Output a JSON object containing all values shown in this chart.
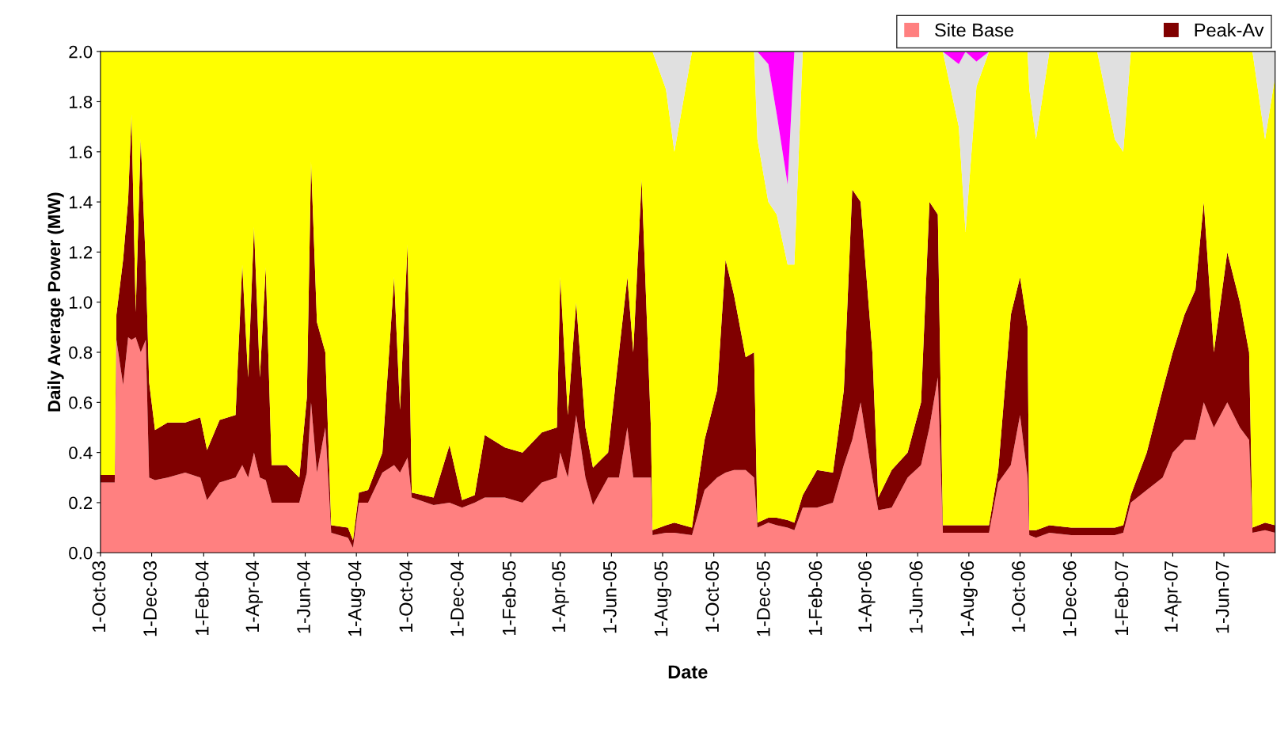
{
  "chart_data": {
    "type": "area",
    "stacked": true,
    "xlabel": "Date",
    "ylabel": "Daily Average Power (MW)",
    "legend": "top right",
    "grid": false,
    "x": [
      "2003-10-01",
      "2003-10-18",
      "2003-10-20",
      "2003-10-28",
      "2003-11-03",
      "2003-11-07",
      "2003-11-12",
      "2003-11-18",
      "2003-11-24",
      "2003-11-28",
      "2003-12-05",
      "2003-12-20",
      "2004-01-10",
      "2004-01-28",
      "2004-02-05",
      "2004-02-20",
      "2004-03-10",
      "2004-03-18",
      "2004-03-25",
      "2004-04-01",
      "2004-04-08",
      "2004-04-15",
      "2004-04-22",
      "2004-05-10",
      "2004-05-25",
      "2004-06-03",
      "2004-06-08",
      "2004-06-15",
      "2004-06-25",
      "2004-07-02",
      "2004-07-22",
      "2004-07-28",
      "2004-08-04",
      "2004-08-15",
      "2004-09-01",
      "2004-09-15",
      "2004-09-22",
      "2004-10-01",
      "2004-10-06",
      "2004-11-01",
      "2004-11-20",
      "2004-12-05",
      "2004-12-20",
      "2005-01-01",
      "2005-01-25",
      "2005-02-15",
      "2005-03-10",
      "2005-03-28",
      "2005-04-01",
      "2005-04-10",
      "2005-04-20",
      "2005-05-01",
      "2005-05-10",
      "2005-05-28",
      "2005-06-10",
      "2005-06-20",
      "2005-06-27",
      "2005-07-07",
      "2005-07-18",
      "2005-07-20",
      "2005-08-05",
      "2005-08-15",
      "2005-09-05",
      "2005-09-20",
      "2005-10-05",
      "2005-10-15",
      "2005-10-25",
      "2005-11-08",
      "2005-11-18",
      "2005-11-22",
      "2005-12-05",
      "2005-12-15",
      "2005-12-28",
      "2006-01-05",
      "2006-01-15",
      "2006-02-01",
      "2006-02-20",
      "2006-03-05",
      "2006-03-15",
      "2006-03-25",
      "2006-04-08",
      "2006-04-15",
      "2006-05-01",
      "2006-05-20",
      "2006-06-05",
      "2006-06-15",
      "2006-06-25",
      "2006-07-01",
      "2006-07-20",
      "2006-07-28",
      "2006-08-10",
      "2006-08-25",
      "2006-09-05",
      "2006-09-20",
      "2006-10-01",
      "2006-10-10",
      "2006-10-12",
      "2006-10-20",
      "2006-11-05",
      "2006-12-01",
      "2007-01-01",
      "2007-01-22",
      "2007-02-01",
      "2007-02-10",
      "2007-03-01",
      "2007-03-20",
      "2007-04-01",
      "2007-04-15",
      "2007-04-28",
      "2007-05-08",
      "2007-05-20",
      "2007-06-05",
      "2007-06-20",
      "2007-07-01",
      "2007-07-05",
      "2007-07-20",
      "2007-08-01"
    ],
    "series": [
      {
        "name": "Site Base",
        "color": "#ff8080",
        "values": [
          0.28,
          0.28,
          0.85,
          0.67,
          0.86,
          0.85,
          0.86,
          0.8,
          0.85,
          0.3,
          0.29,
          0.3,
          0.32,
          0.3,
          0.21,
          0.28,
          0.3,
          0.35,
          0.3,
          0.4,
          0.3,
          0.29,
          0.2,
          0.2,
          0.2,
          0.32,
          0.6,
          0.32,
          0.5,
          0.08,
          0.06,
          0.02,
          0.2,
          0.2,
          0.32,
          0.35,
          0.32,
          0.38,
          0.22,
          0.19,
          0.2,
          0.18,
          0.2,
          0.22,
          0.22,
          0.2,
          0.28,
          0.3,
          0.4,
          0.3,
          0.55,
          0.3,
          0.19,
          0.3,
          0.3,
          0.5,
          0.3,
          0.3,
          0.3,
          0.07,
          0.08,
          0.08,
          0.07,
          0.25,
          0.3,
          0.32,
          0.33,
          0.33,
          0.3,
          0.1,
          0.12,
          0.11,
          0.1,
          0.09,
          0.18,
          0.18,
          0.2,
          0.35,
          0.45,
          0.6,
          0.3,
          0.17,
          0.18,
          0.3,
          0.35,
          0.5,
          0.7,
          0.08,
          0.08,
          0.08,
          0.08,
          0.08,
          0.28,
          0.35,
          0.55,
          0.3,
          0.07,
          0.06,
          0.08,
          0.07,
          0.07,
          0.07,
          0.08,
          0.2,
          0.25,
          0.3,
          0.4,
          0.45,
          0.45,
          0.6,
          0.5,
          0.6,
          0.5,
          0.45,
          0.08,
          0.09,
          0.08
        ]
      },
      {
        "name": "Peak-Av",
        "color": "#800000",
        "values": [
          0.03,
          0.03,
          0.1,
          0.5,
          0.55,
          0.9,
          0.1,
          0.85,
          0.3,
          0.38,
          0.2,
          0.22,
          0.2,
          0.24,
          0.2,
          0.25,
          0.25,
          0.8,
          0.4,
          0.9,
          0.4,
          0.85,
          0.15,
          0.15,
          0.1,
          0.3,
          0.96,
          0.6,
          0.3,
          0.03,
          0.04,
          0.03,
          0.04,
          0.05,
          0.08,
          0.75,
          0.25,
          0.85,
          0.02,
          0.03,
          0.23,
          0.03,
          0.03,
          0.25,
          0.2,
          0.2,
          0.2,
          0.2,
          0.7,
          0.25,
          0.45,
          0.2,
          0.15,
          0.1,
          0.5,
          0.6,
          0.5,
          1.19,
          0.2,
          0.02,
          0.03,
          0.04,
          0.03,
          0.2,
          0.35,
          0.85,
          0.7,
          0.45,
          0.5,
          0.02,
          0.02,
          0.03,
          0.03,
          0.03,
          0.05,
          0.15,
          0.12,
          0.3,
          1.0,
          0.8,
          0.5,
          0.05,
          0.15,
          0.1,
          0.25,
          0.9,
          0.65,
          0.03,
          0.03,
          0.03,
          0.03,
          0.03,
          0.05,
          0.6,
          0.55,
          0.6,
          0.02,
          0.03,
          0.03,
          0.03,
          0.03,
          0.03,
          0.03,
          0.03,
          0.15,
          0.35,
          0.4,
          0.5,
          0.6,
          0.8,
          0.3,
          0.6,
          0.5,
          0.35,
          0.02,
          0.03,
          0.03
        ]
      },
      {
        "color": "#ffff00",
        "values": [
          1.69,
          1.69,
          1.05,
          0.83,
          0.59,
          0.25,
          1.04,
          0.35,
          0.85,
          1.32,
          1.51,
          1.48,
          1.48,
          1.46,
          1.59,
          1.47,
          1.45,
          0.85,
          1.3,
          0.7,
          1.3,
          0.86,
          1.65,
          1.65,
          1.7,
          1.38,
          0.44,
          1.08,
          1.2,
          1.89,
          1.9,
          1.95,
          1.76,
          1.75,
          1.6,
          0.9,
          1.43,
          0.77,
          1.76,
          1.78,
          1.57,
          1.79,
          1.77,
          1.53,
          1.58,
          1.6,
          1.52,
          1.5,
          0.9,
          1.45,
          1.0,
          1.5,
          1.66,
          1.6,
          1.2,
          0.9,
          1.2,
          0.51,
          1.5,
          1.91,
          1.74,
          1.48,
          1.9,
          1.55,
          1.35,
          0.83,
          0.97,
          1.22,
          1.2,
          1.53,
          1.26,
          1.21,
          1.02,
          1.03,
          1.77,
          1.67,
          1.68,
          1.35,
          0.55,
          0.6,
          1.2,
          1.78,
          1.67,
          1.6,
          1.4,
          0.6,
          0.65,
          1.89,
          1.59,
          1.17,
          1.75,
          1.89,
          1.67,
          1.05,
          0.9,
          1.1,
          1.76,
          1.56,
          1.89,
          1.9,
          1.9,
          1.55,
          1.49,
          1.77,
          1.6,
          1.35,
          1.2,
          1.05,
          0.95,
          0.6,
          1.2,
          0.8,
          1.0,
          1.2,
          1.9,
          1.53,
          1.79
        ]
      },
      {
        "color": "#e0e0e0",
        "values": [
          0,
          0,
          0,
          0,
          0,
          0,
          0,
          0,
          0,
          0,
          0,
          0,
          0,
          0,
          0,
          0,
          0,
          0,
          0,
          0,
          0,
          0,
          0,
          0,
          0,
          0,
          0,
          0,
          0,
          0,
          0,
          0,
          0,
          0,
          0,
          0,
          0,
          0,
          0,
          0,
          0,
          0,
          0,
          0,
          0,
          0,
          0,
          0,
          0,
          0,
          0,
          0,
          0,
          0,
          0,
          0,
          0,
          0,
          0,
          0,
          0.15,
          0.4,
          0,
          0,
          0,
          0,
          0,
          0,
          0,
          0.35,
          0.55,
          0.4,
          0.32,
          0.85,
          0,
          0,
          0,
          0,
          0,
          0,
          0,
          0,
          0,
          0,
          0,
          0,
          0,
          0,
          0.25,
          0.72,
          0.1,
          0,
          0,
          0,
          0,
          0,
          0.15,
          0.35,
          0,
          0,
          0,
          0.35,
          0.4,
          0,
          0,
          0,
          0,
          0,
          0,
          0,
          0,
          0,
          0,
          0,
          0,
          0.35,
          0.1
        ]
      },
      {
        "color": "#ff00ff",
        "values": [
          0,
          0,
          0,
          0,
          0,
          0,
          0,
          0,
          0,
          0,
          0,
          0,
          0,
          0,
          0,
          0,
          0,
          0,
          0,
          0,
          0,
          0,
          0,
          0,
          0,
          0,
          0,
          0,
          0,
          0,
          0,
          0,
          0,
          0,
          0,
          0,
          0,
          0,
          0,
          0,
          0,
          0,
          0,
          0,
          0,
          0,
          0,
          0,
          0,
          0,
          0,
          0,
          0,
          0,
          0,
          0,
          0,
          0,
          0,
          0,
          0,
          0,
          0,
          0,
          0,
          0,
          0,
          0,
          0,
          0,
          0.05,
          0.25,
          0.53,
          0,
          0,
          0,
          0,
          0,
          0,
          0,
          0,
          0,
          0,
          0,
          0,
          0,
          0,
          0,
          0.05,
          0,
          0.04,
          0,
          0,
          0,
          0,
          0,
          0,
          0,
          0,
          0,
          0,
          0,
          0,
          0,
          0,
          0,
          0,
          0,
          0,
          0,
          0,
          0,
          0,
          0,
          0,
          0,
          0
        ]
      }
    ],
    "xlim": [
      "2003-10-01",
      "2007-08-01"
    ],
    "xticks": [
      {
        "value": "2003-10-01",
        "label": "1-Oct-03"
      },
      {
        "value": "2003-12-01",
        "label": "1-Dec-03"
      },
      {
        "value": "2004-02-01",
        "label": "1-Feb-04"
      },
      {
        "value": "2004-04-01",
        "label": "1-Apr-04"
      },
      {
        "value": "2004-06-01",
        "label": "1-Jun-04"
      },
      {
        "value": "2004-08-01",
        "label": "1-Aug-04"
      },
      {
        "value": "2004-10-01",
        "label": "1-Oct-04"
      },
      {
        "value": "2004-12-01",
        "label": "1-Dec-04"
      },
      {
        "value": "2005-02-01",
        "label": "1-Feb-05"
      },
      {
        "value": "2005-04-01",
        "label": "1-Apr-05"
      },
      {
        "value": "2005-06-01",
        "label": "1-Jun-05"
      },
      {
        "value": "2005-08-01",
        "label": "1-Aug-05"
      },
      {
        "value": "2005-10-01",
        "label": "1-Oct-05"
      },
      {
        "value": "2005-12-01",
        "label": "1-Dec-05"
      },
      {
        "value": "2006-02-01",
        "label": "1-Feb-06"
      },
      {
        "value": "2006-04-01",
        "label": "1-Apr-06"
      },
      {
        "value": "2006-06-01",
        "label": "1-Jun-06"
      },
      {
        "value": "2006-08-01",
        "label": "1-Aug-06"
      },
      {
        "value": "2006-10-01",
        "label": "1-Oct-06"
      },
      {
        "value": "2006-12-01",
        "label": "1-Dec-06"
      },
      {
        "value": "2007-02-01",
        "label": "1-Feb-07"
      },
      {
        "value": "2007-04-01",
        "label": "1-Apr-07"
      },
      {
        "value": "2007-06-01",
        "label": "1-Jun-07"
      }
    ],
    "ylim": [
      0,
      2.0
    ],
    "yticks": [
      {
        "value": 0,
        "label": "0.0"
      },
      {
        "value": 0.2,
        "label": "0.2"
      },
      {
        "value": 0.4,
        "label": "0.4"
      },
      {
        "value": 0.6,
        "label": "0.6"
      },
      {
        "value": 0.8,
        "label": "0.8"
      },
      {
        "value": 1.0,
        "label": "1.0"
      },
      {
        "value": 1.2,
        "label": "1.2"
      },
      {
        "value": 1.4,
        "label": "1.4"
      },
      {
        "value": 1.6,
        "label": "1.6"
      },
      {
        "value": 1.8,
        "label": "1.8"
      },
      {
        "value": 2.0,
        "label": "2.0"
      }
    ]
  }
}
